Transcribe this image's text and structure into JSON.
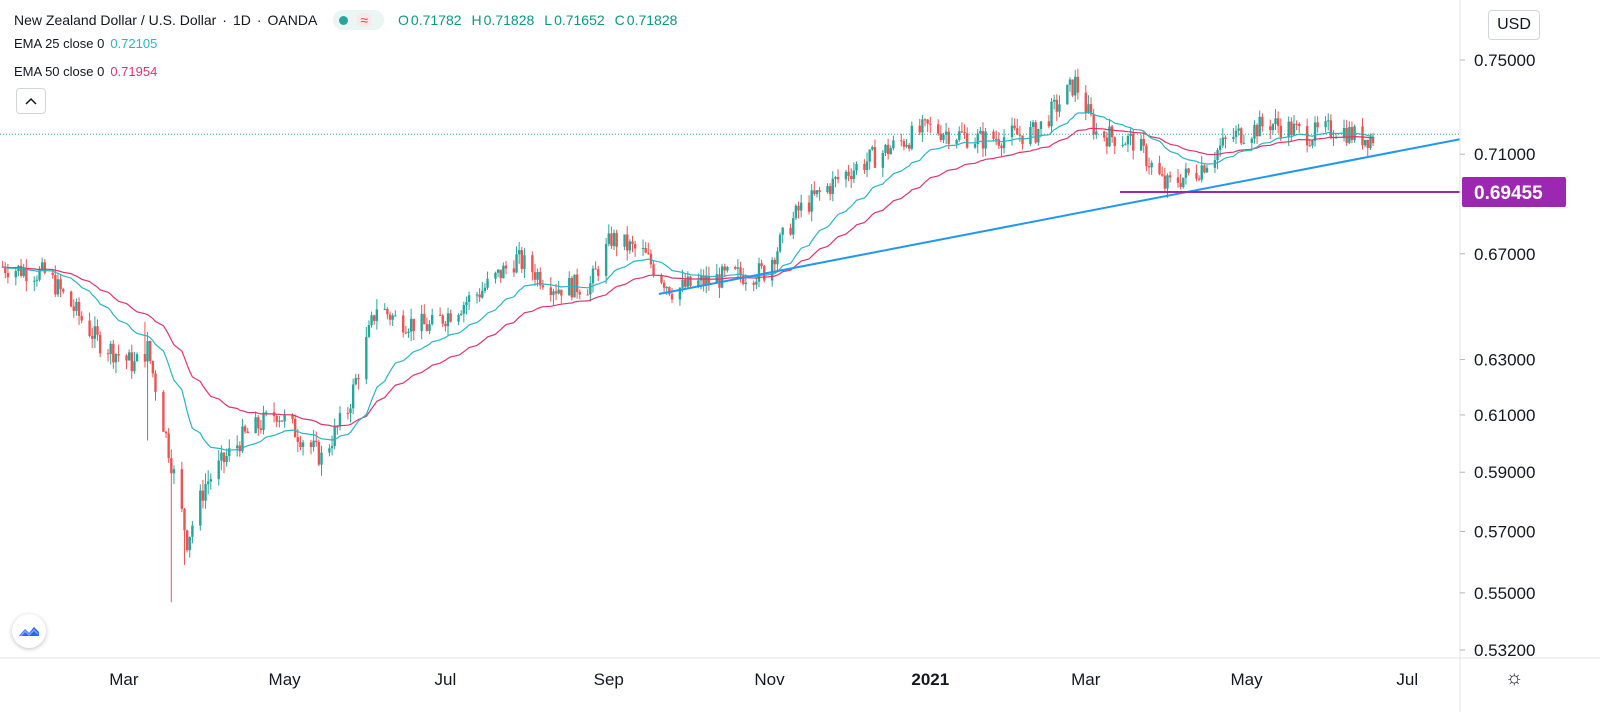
{
  "header": {
    "symbol_title": "New Zealand Dollar / U.S. Dollar",
    "interval": "1D",
    "exchange": "OANDA",
    "ohlc": [
      {
        "label": "O",
        "value": "0.71782"
      },
      {
        "label": "H",
        "value": "0.71828"
      },
      {
        "label": "L",
        "value": "0.71652"
      },
      {
        "label": "C",
        "value": "0.71828"
      }
    ],
    "wave_glyph": "≈",
    "collapse_glyph": "^"
  },
  "indicators": [
    {
      "label": "EMA 25 close 0",
      "value": "0.72105",
      "color": "#26b6c6"
    },
    {
      "label": "EMA 50 close 0",
      "value": "0.71954",
      "color": "#e2336b"
    }
  ],
  "currency_button": "USD",
  "colors": {
    "up": "#26a69a",
    "down": "#ef5350",
    "ema25": "#26b6c6",
    "ema50": "#e2336b",
    "trendline": "#2196f3",
    "horizontal_line": "#9c27b0",
    "price_badge": "#9c27b0",
    "dotted_price_line": "#26a69a"
  },
  "icons": {
    "logo": "tradingview-logo-icon",
    "settings": "sun-settings-icon",
    "collapse": "chevron-up-icon"
  },
  "chart_data": {
    "type": "candlestick",
    "x_axis": {
      "ticks": [
        "Mar",
        "May",
        "Jul",
        "Sep",
        "Nov",
        "2021",
        "Mar",
        "May",
        "Jul"
      ],
      "bold_tick": "2021",
      "dates": [
        "2020-03-01",
        "2020-05-01",
        "2020-07-01",
        "2020-09-01",
        "2020-11-01",
        "2021-01-01",
        "2021-03-01",
        "2021-05-01",
        "2021-07-01"
      ],
      "range": [
        "2020-01-14",
        "2021-07-21"
      ]
    },
    "y_axis": {
      "ticks": [
        "0.75000",
        "0.71000",
        "0.67000",
        "0.63000",
        "0.61000",
        "0.59000",
        "0.57000",
        "0.55000",
        "0.53200"
      ],
      "values": [
        0.75,
        0.71,
        0.67,
        0.63,
        0.61,
        0.59,
        0.57,
        0.55,
        0.532
      ],
      "range": [
        0.531,
        0.7545
      ],
      "scale": "log"
    },
    "price_badge": {
      "label": "0.69455",
      "value": 0.69455
    },
    "horizontal_line": {
      "value": 0.69455,
      "from": "2021-03-14",
      "to": "2021-07-21"
    },
    "trendline": {
      "start": {
        "date": "2020-09-20",
        "value": 0.6545
      },
      "end": {
        "date": "2021-07-21",
        "value": 0.7162
      }
    },
    "last_price_line": 0.71828,
    "price_path_keypoints": [
      {
        "date": "2020-01-15",
        "value": 0.665
      },
      {
        "date": "2020-02-01",
        "value": 0.662
      },
      {
        "date": "2020-02-20",
        "value": 0.637
      },
      {
        "date": "2020-03-05",
        "value": 0.628
      },
      {
        "date": "2020-03-10",
        "value": 0.634
      },
      {
        "date": "2020-03-18",
        "value": 0.598
      },
      {
        "date": "2020-03-25",
        "value": 0.567
      },
      {
        "date": "2020-04-01",
        "value": 0.586
      },
      {
        "date": "2020-04-15",
        "value": 0.602
      },
      {
        "date": "2020-04-28",
        "value": 0.611
      },
      {
        "date": "2020-05-15",
        "value": 0.595
      },
      {
        "date": "2020-05-25",
        "value": 0.612
      },
      {
        "date": "2020-06-05",
        "value": 0.65
      },
      {
        "date": "2020-06-12",
        "value": 0.645
      },
      {
        "date": "2020-06-25",
        "value": 0.642
      },
      {
        "date": "2020-07-15",
        "value": 0.656
      },
      {
        "date": "2020-07-28",
        "value": 0.668
      },
      {
        "date": "2020-08-12",
        "value": 0.657
      },
      {
        "date": "2020-08-25",
        "value": 0.658
      },
      {
        "date": "2020-09-02",
        "value": 0.676
      },
      {
        "date": "2020-09-14",
        "value": 0.67
      },
      {
        "date": "2020-09-25",
        "value": 0.656
      },
      {
        "date": "2020-10-15",
        "value": 0.661
      },
      {
        "date": "2020-10-30",
        "value": 0.663
      },
      {
        "date": "2020-11-12",
        "value": 0.687
      },
      {
        "date": "2020-12-01",
        "value": 0.703
      },
      {
        "date": "2020-12-31",
        "value": 0.721
      },
      {
        "date": "2021-01-20",
        "value": 0.716
      },
      {
        "date": "2021-02-10",
        "value": 0.719
      },
      {
        "date": "2021-02-25",
        "value": 0.74
      },
      {
        "date": "2021-03-05",
        "value": 0.719
      },
      {
        "date": "2021-03-20",
        "value": 0.715
      },
      {
        "date": "2021-03-31",
        "value": 0.697
      },
      {
        "date": "2021-04-12",
        "value": 0.703
      },
      {
        "date": "2021-04-25",
        "value": 0.717
      },
      {
        "date": "2021-05-10",
        "value": 0.723
      },
      {
        "date": "2021-05-25",
        "value": 0.718
      },
      {
        "date": "2021-06-05",
        "value": 0.721
      },
      {
        "date": "2021-06-12",
        "value": 0.717
      },
      {
        "date": "2021-06-18",
        "value": 0.717
      }
    ],
    "ema_periods": [
      25,
      50
    ]
  }
}
